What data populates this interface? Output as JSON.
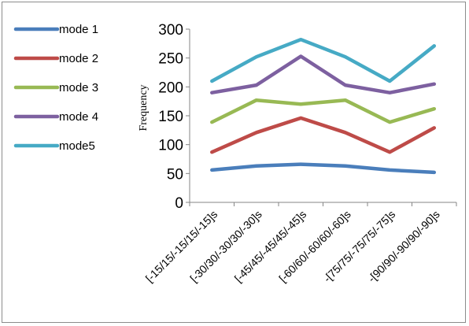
{
  "chart_data": {
    "type": "line",
    "ylabel": "Frequency",
    "xlabel": "",
    "ylim": [
      0,
      300
    ],
    "yticks": [
      0,
      50,
      100,
      150,
      200,
      250,
      300
    ],
    "grid": false,
    "legend_position": "left",
    "categories": [
      "[-15/15/-15/15/-15]s",
      "[-30/30/-30/30/-30]s",
      "[-45/45/-45/45/-45]s",
      "[-60/60/-60/60/-60]s",
      "-[75/75/-75/75/-75]s",
      "-[90/90/-90/90/-90]s"
    ],
    "series": [
      {
        "name": "mode 1",
        "color": "#4a7ebb",
        "values": [
          56,
          63,
          66,
          63,
          56,
          52
        ]
      },
      {
        "name": "mode 2",
        "color": "#be4b48",
        "values": [
          87,
          121,
          146,
          121,
          87,
          129
        ]
      },
      {
        "name": "mode 3",
        "color": "#98b954",
        "values": [
          139,
          177,
          170,
          177,
          139,
          162
        ]
      },
      {
        "name": "mode 4",
        "color": "#7d60a0",
        "values": [
          190,
          203,
          253,
          203,
          190,
          205
        ]
      },
      {
        "name": "mode5",
        "color": "#46aac5",
        "values": [
          210,
          252,
          282,
          252,
          210,
          271
        ]
      }
    ]
  }
}
